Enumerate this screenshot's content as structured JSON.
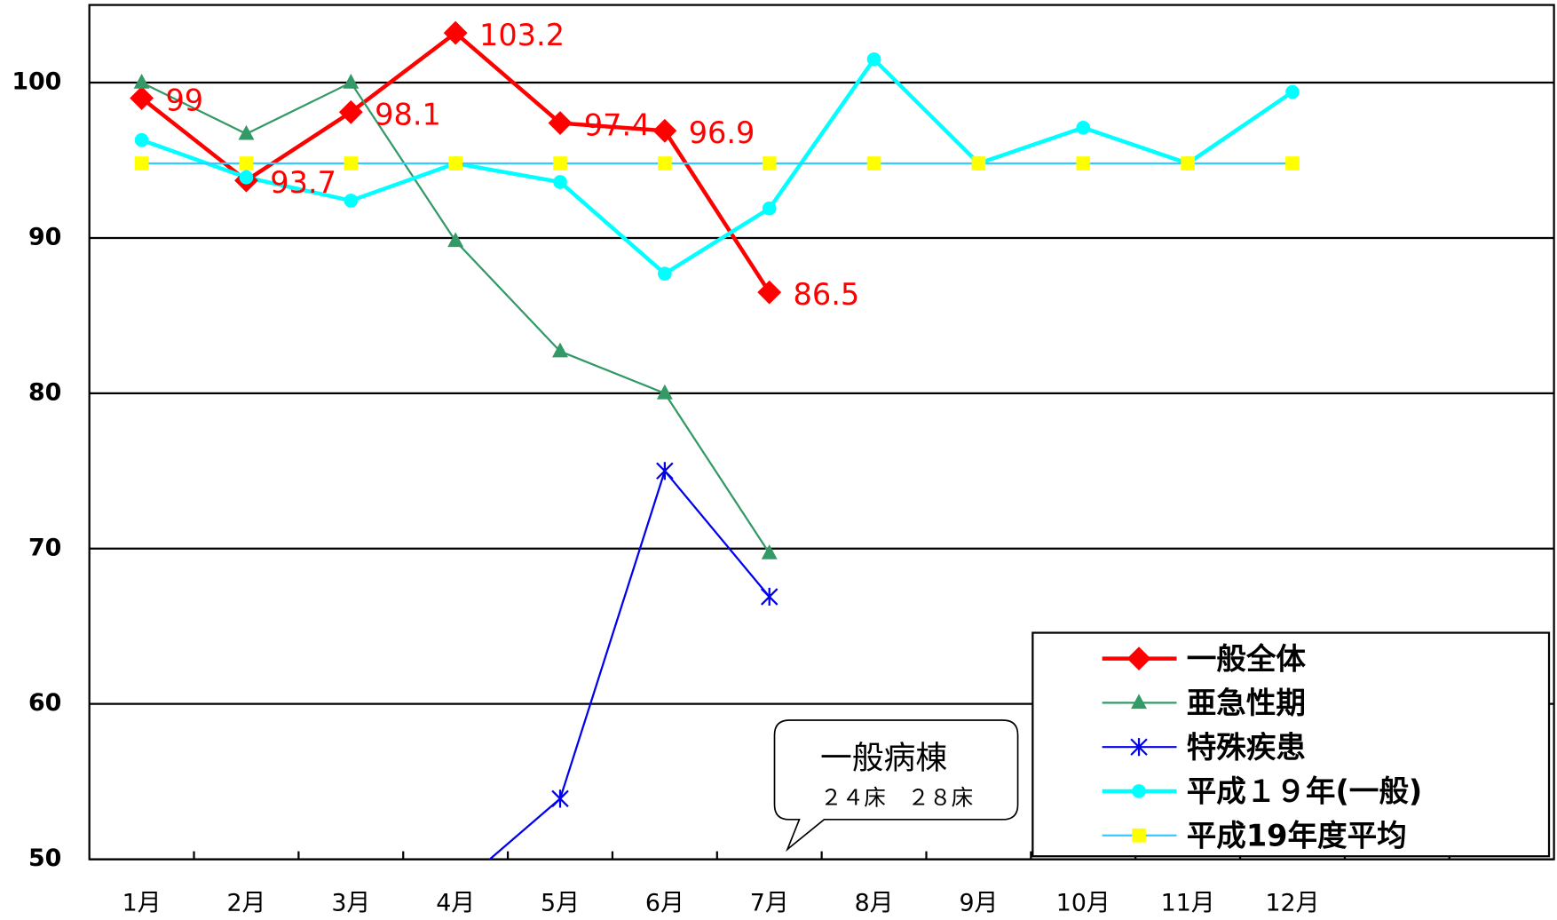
{
  "chart_data": {
    "type": "line",
    "categories": [
      "1月",
      "2月",
      "3月",
      "4月",
      "5月",
      "6月",
      "7月",
      "8月",
      "9月",
      "10月",
      "11月",
      "12月",
      null,
      null
    ],
    "series": [
      {
        "name": "一般全体",
        "color": "#ff0000",
        "marker": "diamond",
        "values": [
          99,
          93.7,
          98.1,
          103.2,
          97.4,
          96.9,
          86.5,
          null,
          null,
          null,
          null,
          null,
          null,
          null
        ]
      },
      {
        "name": "亜急性期",
        "color": "#339966",
        "marker": "triangle",
        "values": [
          100,
          96.7,
          100,
          89.8,
          82.7,
          80,
          69.7,
          null,
          null,
          null,
          null,
          null,
          null,
          null
        ]
      },
      {
        "name": "特殊疾患",
        "color": "#0000ee",
        "marker": "asterisk",
        "values": [
          null,
          null,
          null,
          48.1,
          53.9,
          75,
          66.9,
          null,
          null,
          null,
          null,
          null,
          null,
          null
        ]
      },
      {
        "name": "平成１９年(一般)",
        "color": "#00ffff",
        "marker": "circle",
        "values": [
          96.3,
          93.9,
          92.4,
          94.8,
          93.6,
          87.7,
          91.9,
          101.5,
          94.8,
          97.1,
          94.8,
          99.4,
          null,
          null
        ]
      },
      {
        "name": "平成19年度平均",
        "color": "#33ccff",
        "marker": "square",
        "marker_color": "#ffff00",
        "values": [
          94.8,
          94.8,
          94.8,
          94.8,
          94.8,
          94.8,
          94.8,
          94.8,
          94.8,
          94.8,
          94.8,
          94.8,
          null,
          null
        ]
      }
    ],
    "data_labels_series": 0,
    "ylim": [
      50,
      105
    ],
    "yticks": [
      50,
      60,
      70,
      80,
      90,
      100
    ],
    "grid": true,
    "legend": "bottom-right",
    "annotations": [
      "一般病棟",
      "２４床　２８床"
    ]
  }
}
